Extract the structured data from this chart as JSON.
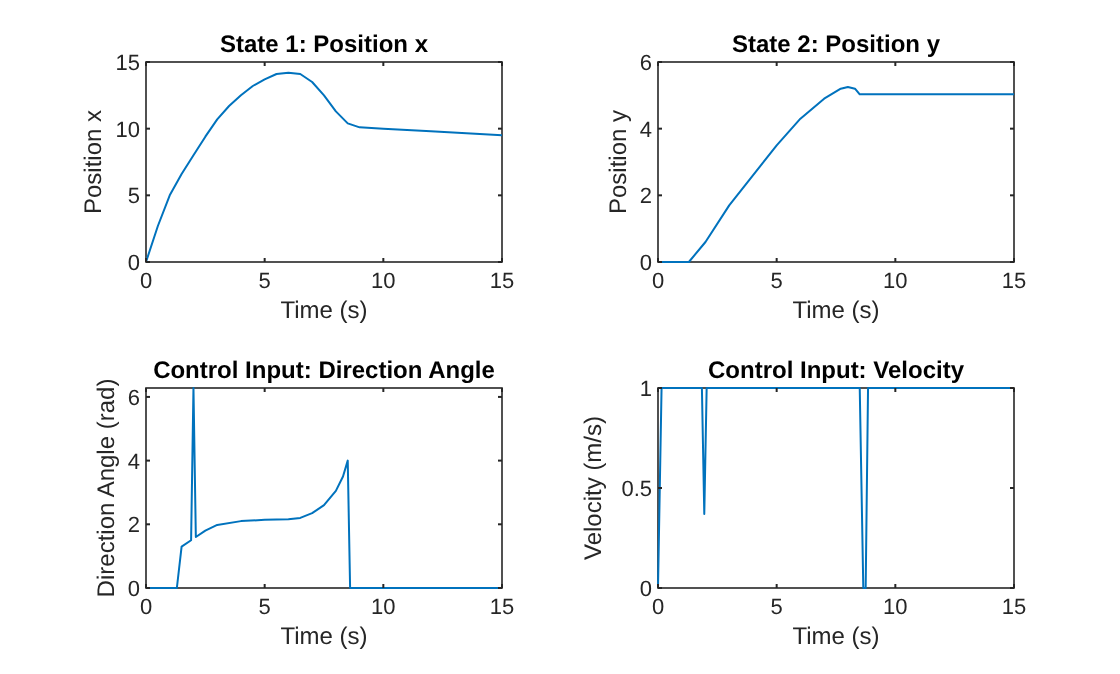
{
  "chart_data": [
    {
      "type": "line",
      "title": "State 1: Position x",
      "xlabel": "Time (s)",
      "ylabel": "Position x",
      "xlim": [
        0,
        15
      ],
      "ylim": [
        0,
        15
      ],
      "xticks": [
        0,
        5,
        10,
        15
      ],
      "yticks": [
        0,
        5,
        10,
        15
      ],
      "line_style": "solid",
      "marker": "none",
      "x": [
        0,
        0.5,
        1,
        1.5,
        2,
        2.5,
        3,
        3.5,
        4,
        4.5,
        5,
        5.5,
        6,
        6.5,
        7,
        7.5,
        8,
        8.5,
        9,
        10,
        12,
        15
      ],
      "series": [
        {
          "color": "#0072bd",
          "values": [
            0,
            2.7,
            5,
            6.6,
            8,
            9.4,
            10.7,
            11.7,
            12.5,
            13.2,
            13.7,
            14.1,
            14.2,
            14.1,
            13.5,
            12.5,
            11.3,
            10.4,
            10.1,
            10.0,
            9.8,
            9.5
          ]
        }
      ]
    },
    {
      "type": "line",
      "title": "State 2: Position y",
      "xlabel": "Time (s)",
      "ylabel": "Position y",
      "xlim": [
        0,
        15
      ],
      "ylim": [
        0,
        6
      ],
      "xticks": [
        0,
        5,
        10,
        15
      ],
      "yticks": [
        0,
        2,
        4,
        6
      ],
      "line_style": "solid",
      "marker": "none",
      "x": [
        0,
        1.3,
        2,
        3,
        4,
        5,
        6,
        7,
        7.7,
        8,
        8.3,
        8.5,
        15
      ],
      "series": [
        {
          "color": "#0072bd",
          "values": [
            0,
            0,
            0.6,
            1.7,
            2.6,
            3.5,
            4.3,
            4.9,
            5.2,
            5.25,
            5.2,
            5.03,
            5.03
          ]
        }
      ]
    },
    {
      "type": "line",
      "title": "Control Input: Direction Angle",
      "xlabel": "Time (s)",
      "ylabel": "Direction Angle (rad)",
      "xlim": [
        0,
        15
      ],
      "ylim": [
        0,
        6.28
      ],
      "xticks": [
        0,
        5,
        10,
        15
      ],
      "yticks": [
        0,
        2,
        4,
        6
      ],
      "line_style": "solid",
      "marker": "none",
      "x": [
        0,
        1.3,
        1.5,
        1.9,
        2.0,
        2.1,
        2.5,
        3,
        4,
        5,
        6,
        6.5,
        7,
        7.5,
        8,
        8.3,
        8.5,
        8.6,
        15
      ],
      "series": [
        {
          "color": "#0072bd",
          "values": [
            0,
            0,
            1.3,
            1.5,
            6.28,
            1.6,
            1.8,
            1.98,
            2.1,
            2.14,
            2.16,
            2.2,
            2.35,
            2.6,
            3.05,
            3.5,
            4.0,
            0,
            0
          ]
        }
      ]
    },
    {
      "type": "line",
      "title": "Control Input: Velocity",
      "xlabel": "Time (s)",
      "ylabel": "Velocity (m/s)",
      "xlim": [
        0,
        15
      ],
      "ylim": [
        0,
        1
      ],
      "xticks": [
        0,
        5,
        10,
        15
      ],
      "yticks": [
        0,
        0.5,
        1
      ],
      "line_style": "solid",
      "marker": "none",
      "x": [
        0,
        0.15,
        1.85,
        1.95,
        2.05,
        8.5,
        8.65,
        8.75,
        8.85,
        15
      ],
      "series": [
        {
          "color": "#0072bd",
          "values": [
            0,
            1,
            1,
            0.37,
            1,
            1,
            0,
            0,
            1,
            1
          ]
        }
      ]
    }
  ]
}
